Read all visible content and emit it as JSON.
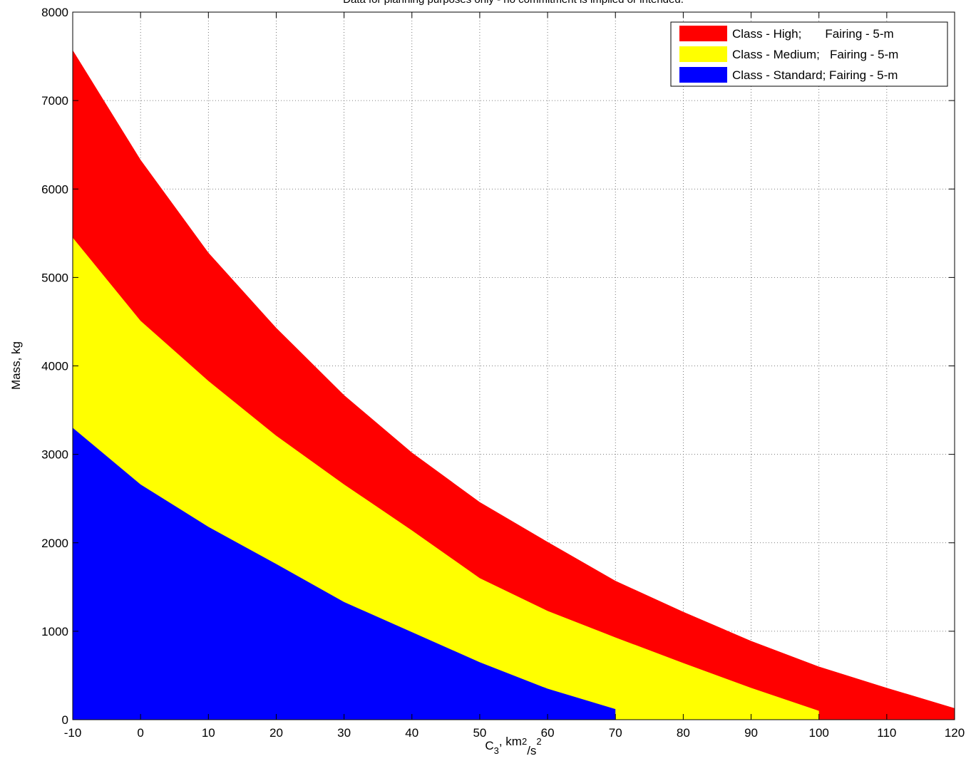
{
  "chart_data": {
    "type": "area",
    "title": "Data for planning purposes only - no commitment is implied or intended.",
    "ylabel": "Mass, kg",
    "xlabel_parts": [
      "C",
      "3",
      ", km",
      "2",
      "/s",
      "2"
    ],
    "x": [
      -10,
      0,
      10,
      20,
      30,
      40,
      50,
      60,
      70,
      80,
      90,
      100,
      110,
      120
    ],
    "series": [
      {
        "name": "Class - High;       Fairing - 5-m",
        "color": "#ff0000",
        "values": [
          7570,
          6330,
          5280,
          4430,
          3670,
          3020,
          2460,
          2010,
          1570,
          1220,
          890,
          600,
          360,
          130
        ]
      },
      {
        "name": "Class - Medium;   Fairing - 5-m",
        "color": "#ffff00",
        "values": [
          5450,
          4510,
          3830,
          3210,
          2660,
          2140,
          1600,
          1230,
          930,
          640,
          360,
          100,
          null,
          null
        ]
      },
      {
        "name": "Class - Standard; Fairing - 5-m",
        "color": "#0000ff",
        "values": [
          3300,
          2660,
          2180,
          1760,
          1330,
          990,
          650,
          350,
          120,
          null,
          null,
          null,
          null,
          null
        ]
      }
    ],
    "xlim": [
      -10,
      120
    ],
    "xticks": [
      -10,
      0,
      10,
      20,
      30,
      40,
      50,
      60,
      70,
      80,
      90,
      100,
      110,
      120
    ],
    "ylim": [
      0,
      8000
    ],
    "yticks": [
      0,
      1000,
      2000,
      3000,
      4000,
      5000,
      6000,
      7000,
      8000
    ],
    "grid": true,
    "legend": "upper-right"
  }
}
